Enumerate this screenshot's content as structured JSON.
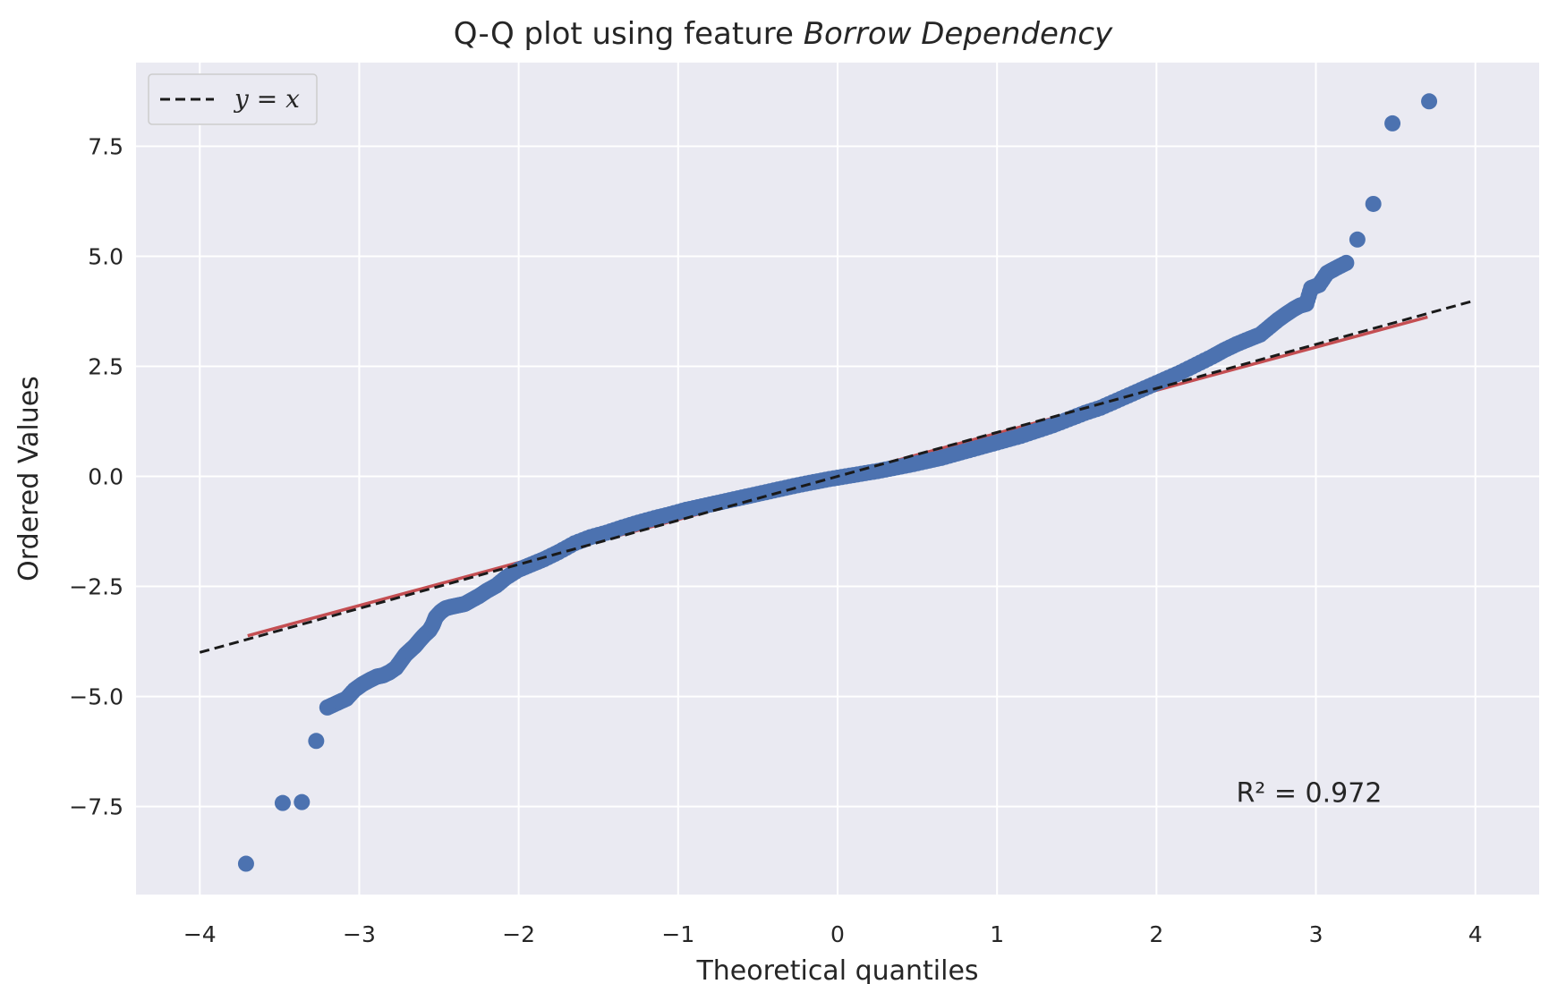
{
  "chart_data": {
    "type": "scatter",
    "title_prefix": "Q-Q plot using feature",
    "title_feature": "Borrow Dependency",
    "xlabel": "Theoretical quantiles",
    "ylabel": "Ordered Values",
    "xlim": [
      -4.4,
      4.4
    ],
    "ylim": [
      -9.5,
      9.4
    ],
    "xticks": [
      -4,
      -3,
      -2,
      -1,
      0,
      1,
      2,
      3,
      4
    ],
    "xtick_labels": [
      "−4",
      "−3",
      "−2",
      "−1",
      "0",
      "1",
      "2",
      "3",
      "4"
    ],
    "yticks": [
      -7.5,
      -5.0,
      -2.5,
      0.0,
      2.5,
      5.0,
      7.5
    ],
    "ytick_labels": [
      "−7.5",
      "−5.0",
      "−2.5",
      "0.0",
      "2.5",
      "5.0",
      "7.5"
    ],
    "grid": true,
    "legend_position": "upper-left",
    "legend": [
      {
        "label": "y = x",
        "style": "dashed",
        "color": "#1a1a1a"
      }
    ],
    "annotation": {
      "text": "R² = 0.972",
      "x": 2.5,
      "y": -7.4
    },
    "colors": {
      "points": "#4c72b0",
      "fit_line": "#c44e52",
      "reference_line": "#1a1a1a",
      "background": "#eaeaf2",
      "grid": "#ffffff"
    },
    "reference_line": {
      "label": "y = x",
      "x": [
        -4,
        4
      ],
      "y": [
        -4,
        4
      ]
    },
    "fit_line": {
      "x": [
        -3.7,
        3.7
      ],
      "y": [
        -3.62,
        3.62
      ]
    },
    "series": [
      {
        "role": "ordered-values",
        "points": [
          [
            -3.71,
            -8.8
          ],
          [
            -3.48,
            -7.42
          ],
          [
            -3.36,
            -7.4
          ],
          [
            -3.27,
            -6.01
          ],
          [
            -3.2,
            -5.25
          ],
          [
            -3.14,
            -5.15
          ],
          [
            -3.08,
            -5.05
          ],
          [
            -3.03,
            -4.85
          ],
          [
            -2.98,
            -4.72
          ],
          [
            -2.93,
            -4.62
          ],
          [
            -2.89,
            -4.55
          ],
          [
            -2.85,
            -4.52
          ],
          [
            -2.81,
            -4.45
          ],
          [
            -2.77,
            -4.35
          ],
          [
            -2.74,
            -4.2
          ],
          [
            -2.71,
            -4.05
          ],
          [
            -2.68,
            -3.95
          ],
          [
            -2.65,
            -3.85
          ],
          [
            -2.62,
            -3.72
          ],
          [
            -2.59,
            -3.6
          ],
          [
            -2.56,
            -3.5
          ],
          [
            -2.54,
            -3.38
          ],
          [
            -2.52,
            -3.2
          ],
          [
            -2.49,
            -3.08
          ],
          [
            -2.46,
            -3.0
          ],
          [
            -2.42,
            -2.96
          ],
          [
            -2.38,
            -2.93
          ],
          [
            -2.34,
            -2.9
          ],
          [
            -2.3,
            -2.82
          ],
          [
            -2.25,
            -2.72
          ],
          [
            -2.2,
            -2.6
          ],
          [
            -2.14,
            -2.48
          ],
          [
            -2.08,
            -2.3
          ],
          [
            -2.0,
            -2.12
          ],
          [
            -1.92,
            -2.0
          ],
          [
            -1.84,
            -1.88
          ],
          [
            -1.75,
            -1.72
          ],
          [
            -1.65,
            -1.52
          ],
          [
            -1.55,
            -1.38
          ],
          [
            -1.45,
            -1.28
          ],
          [
            -1.35,
            -1.16
          ],
          [
            -1.25,
            -1.05
          ],
          [
            -1.15,
            -0.95
          ],
          [
            -1.05,
            -0.86
          ],
          [
            -0.95,
            -0.76
          ],
          [
            -0.85,
            -0.68
          ],
          [
            -0.75,
            -0.6
          ],
          [
            -0.65,
            -0.52
          ],
          [
            -0.55,
            -0.44
          ],
          [
            -0.45,
            -0.36
          ],
          [
            -0.35,
            -0.28
          ],
          [
            -0.25,
            -0.2
          ],
          [
            -0.15,
            -0.13
          ],
          [
            -0.05,
            -0.06
          ],
          [
            0.05,
            0.0
          ],
          [
            0.15,
            0.06
          ],
          [
            0.25,
            0.12
          ],
          [
            0.35,
            0.19
          ],
          [
            0.45,
            0.26
          ],
          [
            0.55,
            0.34
          ],
          [
            0.65,
            0.42
          ],
          [
            0.75,
            0.52
          ],
          [
            0.85,
            0.62
          ],
          [
            0.95,
            0.72
          ],
          [
            1.05,
            0.82
          ],
          [
            1.15,
            0.92
          ],
          [
            1.25,
            1.04
          ],
          [
            1.35,
            1.16
          ],
          [
            1.45,
            1.3
          ],
          [
            1.55,
            1.44
          ],
          [
            1.65,
            1.56
          ],
          [
            1.75,
            1.72
          ],
          [
            1.85,
            1.88
          ],
          [
            1.95,
            2.04
          ],
          [
            2.05,
            2.2
          ],
          [
            2.15,
            2.36
          ],
          [
            2.25,
            2.54
          ],
          [
            2.35,
            2.72
          ],
          [
            2.42,
            2.86
          ],
          [
            2.5,
            3.0
          ],
          [
            2.58,
            3.12
          ],
          [
            2.65,
            3.22
          ],
          [
            2.71,
            3.4
          ],
          [
            2.76,
            3.55
          ],
          [
            2.81,
            3.68
          ],
          [
            2.86,
            3.8
          ],
          [
            2.9,
            3.88
          ],
          [
            2.94,
            3.92
          ],
          [
            2.97,
            4.28
          ],
          [
            3.02,
            4.35
          ],
          [
            3.07,
            4.62
          ],
          [
            3.12,
            4.72
          ],
          [
            3.19,
            4.85
          ],
          [
            3.26,
            5.38
          ],
          [
            3.36,
            6.19
          ],
          [
            3.48,
            8.02
          ],
          [
            3.71,
            8.52
          ]
        ]
      }
    ]
  }
}
